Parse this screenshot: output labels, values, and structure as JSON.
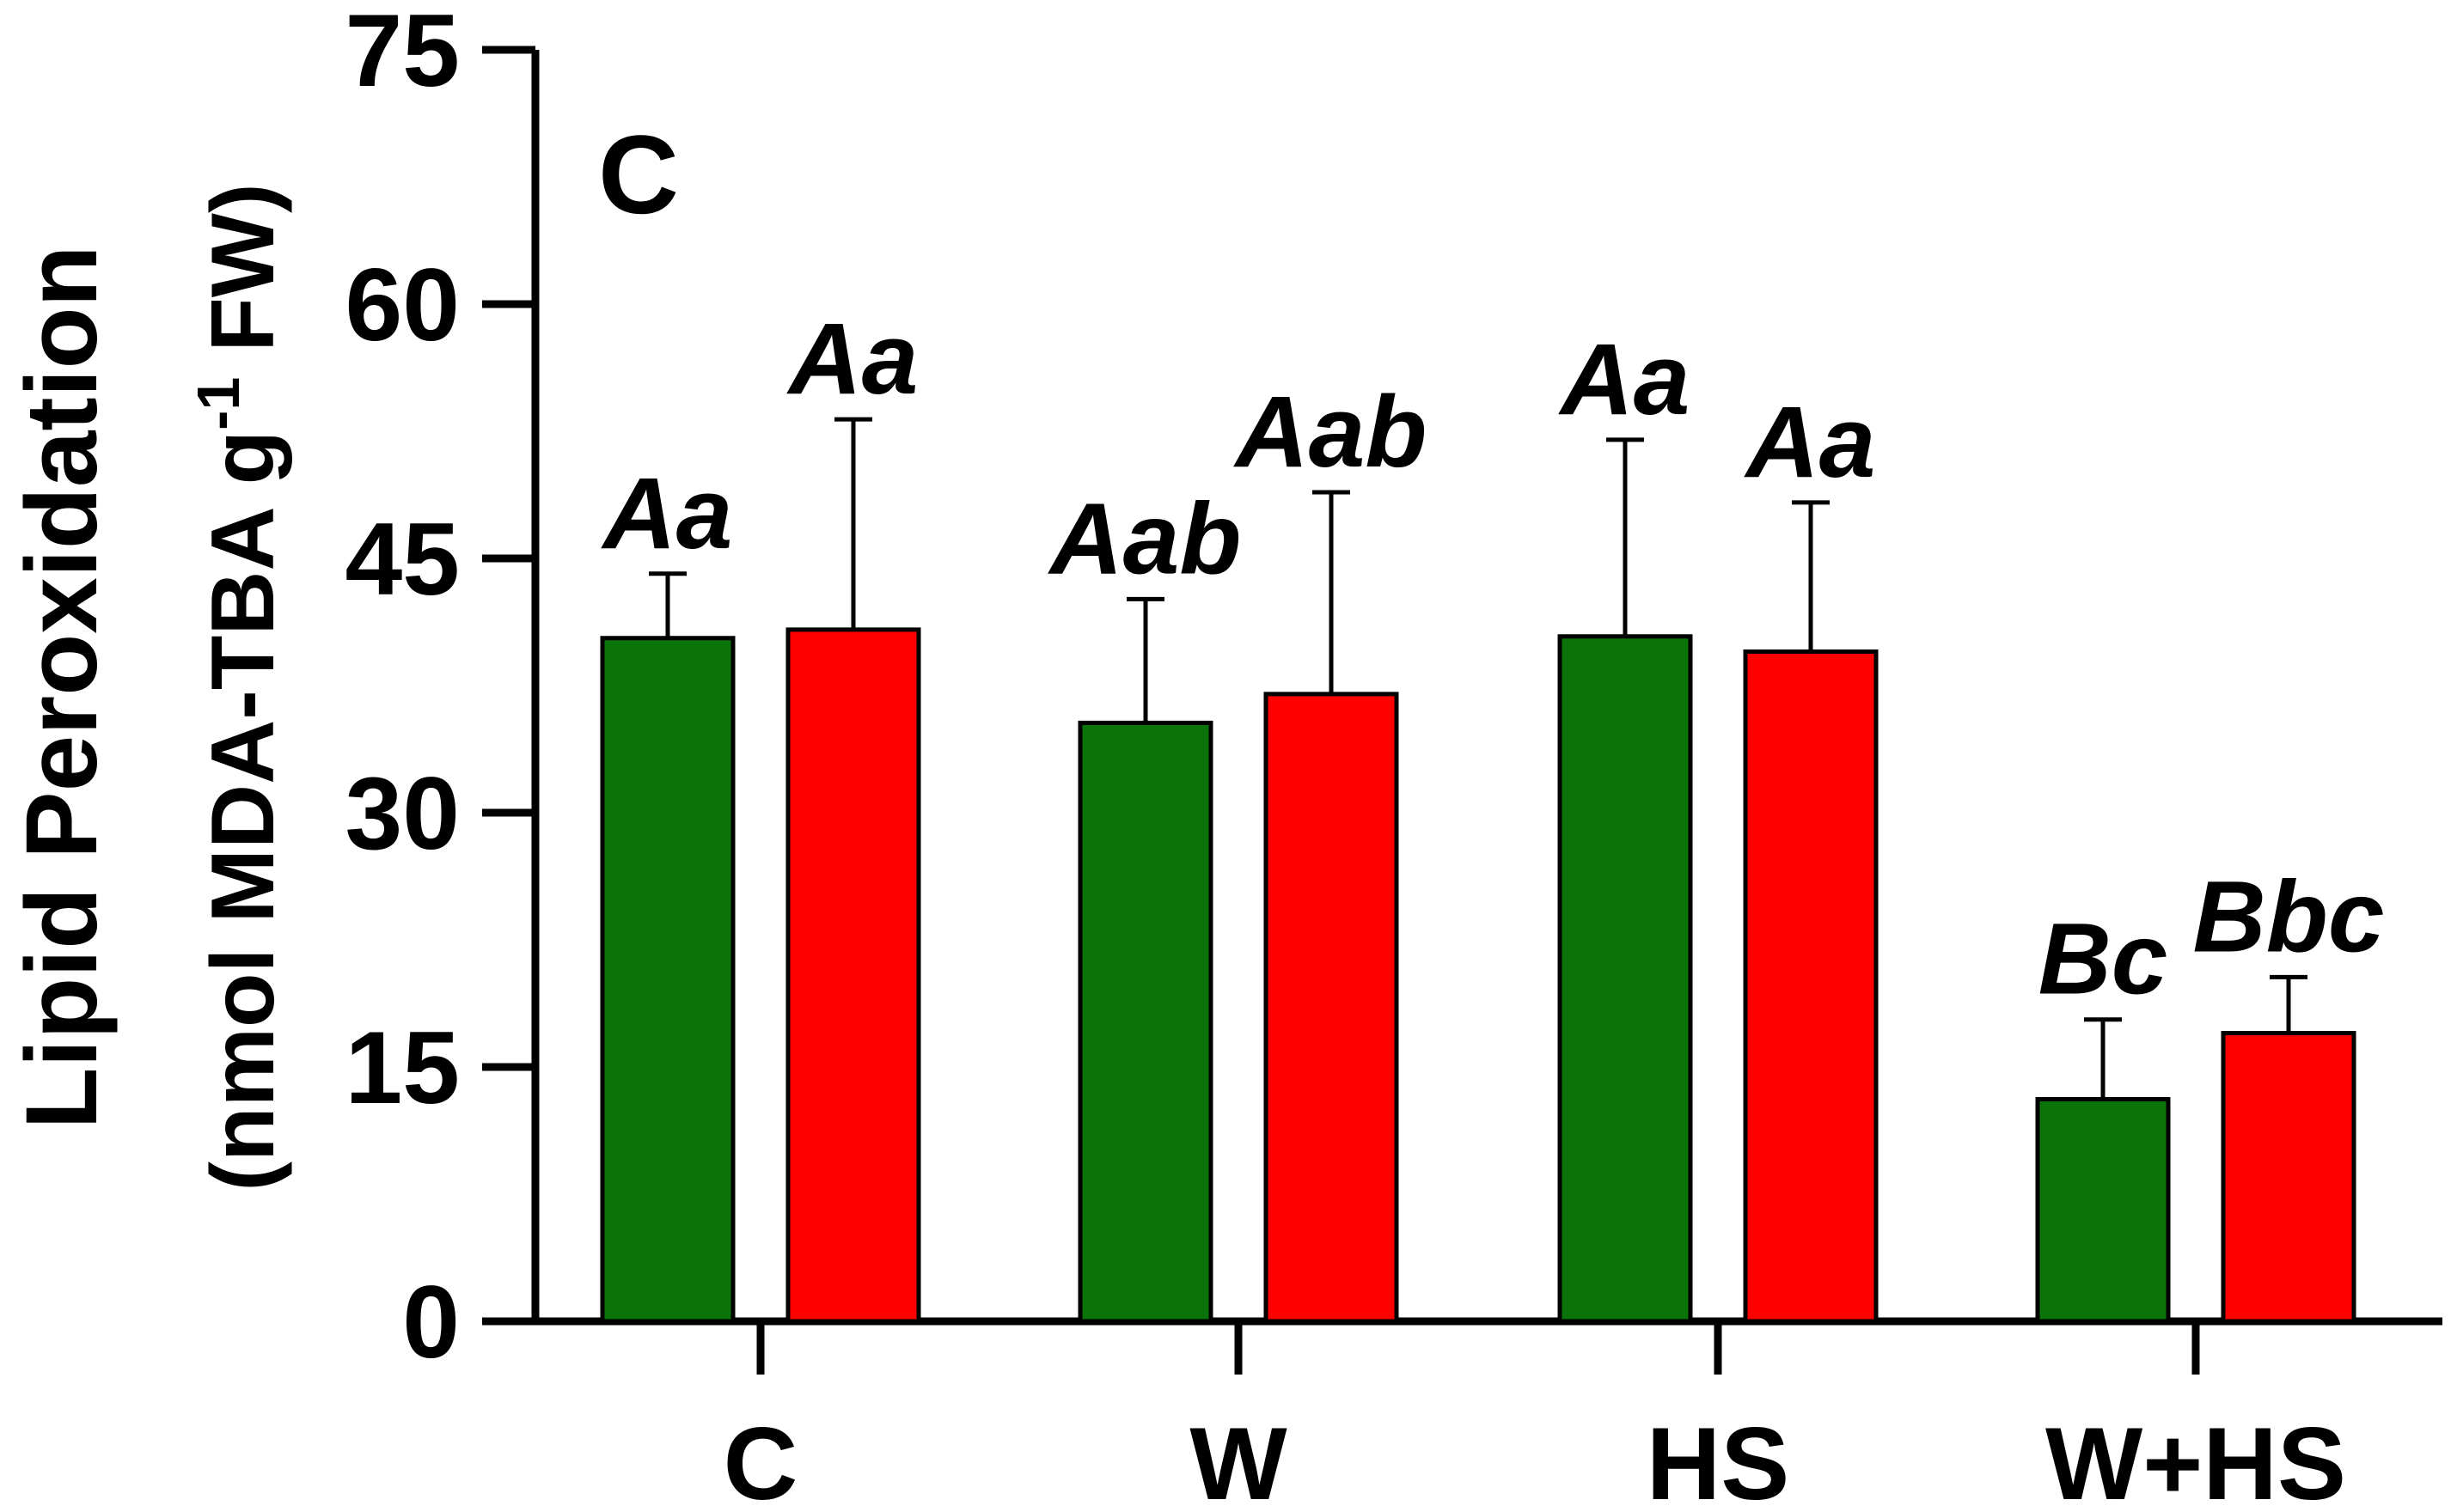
{
  "chart_data": {
    "type": "bar",
    "panel_label": "C",
    "ylabel": "Lipid Peroxidation",
    "ylabel_units": "(nmol MDA-TBA g",
    "ylabel_superscript": "-1",
    "ylabel_units_end": " FW)",
    "xlabel": "",
    "ylim": [
      0,
      75
    ],
    "yticks": [
      "0",
      "15",
      "30",
      "45",
      "60",
      "75"
    ],
    "ytick_values": [
      0,
      15,
      30,
      45,
      60,
      75
    ],
    "categories": [
      "C",
      "W",
      "HS",
      "W+HS"
    ],
    "series": [
      {
        "name": "green",
        "color": "#0a730a",
        "values": [
          40.3,
          35.3,
          40.4,
          13.1
        ],
        "errors": [
          3.8,
          7.3,
          11.6,
          4.7
        ],
        "labels": [
          "Aa",
          "Aab",
          "Aa",
          "Bc"
        ]
      },
      {
        "name": "red",
        "color": "#ff0000",
        "values": [
          40.8,
          37.0,
          39.5,
          17.0
        ],
        "errors": [
          12.4,
          11.9,
          8.8,
          3.3
        ],
        "labels": [
          "Aa",
          "Aab",
          "Aa",
          "Bbc"
        ]
      }
    ]
  }
}
